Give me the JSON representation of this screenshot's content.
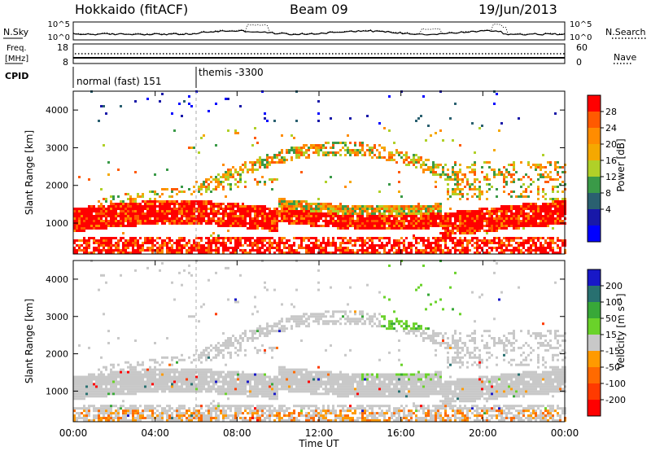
{
  "header": {
    "station": "Hokkaido (fitACF)",
    "beam": "Beam 09",
    "date": "19/Jun/2013"
  },
  "top_panels": {
    "nsky_label": "N.Sky",
    "nsearch_label": "N.Search",
    "noise_ticks": [
      "10^5",
      "10^0"
    ],
    "freq_label_line1": "Freq.",
    "freq_label_line2": "[MHz]",
    "freq_ticks": [
      "18",
      "8"
    ],
    "nave_label": "Nave",
    "nave_ticks": [
      "60",
      "0"
    ],
    "cpid_label": "CPID",
    "cpid_segments": [
      {
        "label": "normal (fast) 151",
        "start_hour": 0
      },
      {
        "label": "themis -3300",
        "start_hour": 6
      }
    ]
  },
  "colorbars": {
    "power": {
      "label": "Power [dB]",
      "ticks": [
        "28",
        "24",
        "20",
        "16",
        "12",
        "8",
        "4"
      ],
      "colors": [
        "#ff0000",
        "#ff5a00",
        "#ff8c00",
        "#f5a800",
        "#b0d028",
        "#3a9a48",
        "#2a6070",
        "#1818a8",
        "#0000ff"
      ]
    },
    "velocity": {
      "label": "Velocity [m s⁻¹]",
      "ticks": [
        "200",
        "100",
        "50",
        "15",
        "-15",
        "-50",
        "-100",
        "-200"
      ],
      "colors": [
        "#1818c8",
        "#287070",
        "#38a838",
        "#6ad22a",
        "#c8c8c8",
        "#ff9a00",
        "#ff6a00",
        "#ff3a00",
        "#ff0000"
      ]
    }
  },
  "chart_data": [
    {
      "type": "heatmap",
      "name": "Power",
      "ylabel": "Slant Range [km]",
      "xlabel": "",
      "ylim": [
        180,
        4500
      ],
      "xlim": [
        0,
        24
      ],
      "yticks": [
        "1000",
        "2000",
        "3000",
        "4000"
      ],
      "xticks": [
        "00:00",
        "04:00",
        "08:00",
        "12:00",
        "16:00",
        "20:00",
        "00:00"
      ],
      "colorbar_range": [
        0,
        30
      ]
    },
    {
      "type": "heatmap",
      "name": "Velocity",
      "ylabel": "Slant Range [km]",
      "xlabel": "Time UT",
      "ylim": [
        180,
        4500
      ],
      "xlim": [
        0,
        24
      ],
      "yticks": [
        "1000",
        "2000",
        "3000",
        "4000"
      ],
      "xticks": [
        "00:00",
        "04:00",
        "08:00",
        "12:00",
        "16:00",
        "20:00",
        "00:00"
      ],
      "colorbar_range": [
        -250,
        250
      ]
    }
  ]
}
